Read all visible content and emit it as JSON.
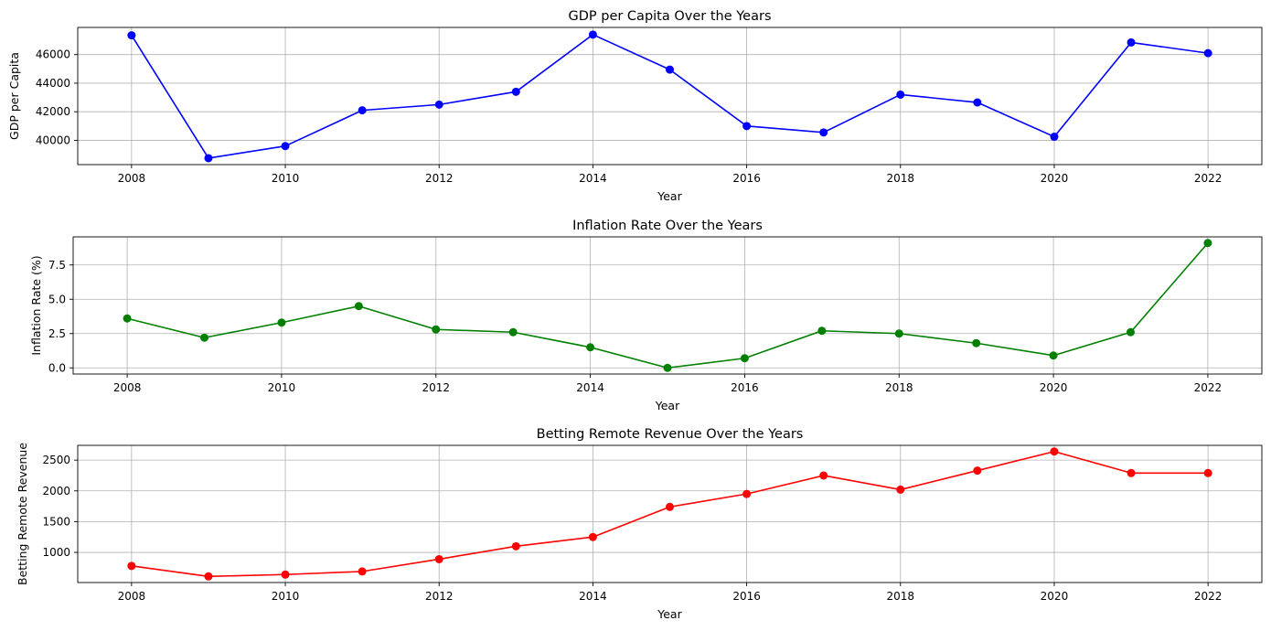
{
  "chart_data": [
    {
      "type": "line",
      "title": "GDP per Capita Over the Years",
      "xlabel": "Year",
      "ylabel": "GDP per Capita",
      "x": [
        2008,
        2009,
        2010,
        2011,
        2012,
        2013,
        2014,
        2015,
        2016,
        2017,
        2018,
        2019,
        2020,
        2021,
        2022
      ],
      "series": [
        {
          "name": "",
          "color": "#0000ff",
          "values": [
            47350,
            38750,
            39600,
            42100,
            42500,
            43400,
            47400,
            44950,
            41000,
            40550,
            43200,
            42650,
            40250,
            46850,
            46100
          ]
        }
      ],
      "xlim": [
        2007.3,
        2022.7
      ],
      "ylim": [
        38300,
        47900
      ],
      "xticks": [
        2008,
        2010,
        2012,
        2014,
        2016,
        2018,
        2020,
        2022
      ],
      "yticks": [
        40000,
        42000,
        44000,
        46000
      ],
      "grid": true
    },
    {
      "type": "line",
      "title": "Inflation Rate Over the Years",
      "xlabel": "Year",
      "ylabel": "Inflation Rate (%)",
      "x": [
        2008,
        2009,
        2010,
        2011,
        2012,
        2013,
        2014,
        2015,
        2016,
        2017,
        2018,
        2019,
        2020,
        2021,
        2022
      ],
      "series": [
        {
          "name": "",
          "color": "#008000",
          "values": [
            3.6,
            2.2,
            3.3,
            4.5,
            2.8,
            2.6,
            1.5,
            0.0,
            0.7,
            2.7,
            2.5,
            1.8,
            0.9,
            2.6,
            9.1
          ]
        }
      ],
      "xlim": [
        2007.3,
        2022.7
      ],
      "ylim": [
        -0.45,
        9.55
      ],
      "xticks": [
        2008,
        2010,
        2012,
        2014,
        2016,
        2018,
        2020,
        2022
      ],
      "yticks": [
        0.0,
        2.5,
        5.0,
        7.5
      ],
      "ytick_labels": [
        "0.0",
        "2.5",
        "5.0",
        "7.5"
      ],
      "grid": true
    },
    {
      "type": "line",
      "title": "Betting Remote Revenue Over the Years",
      "xlabel": "Year",
      "ylabel": "Betting Remote Revenue",
      "x": [
        2008,
        2009,
        2010,
        2011,
        2012,
        2013,
        2014,
        2015,
        2016,
        2017,
        2018,
        2019,
        2020,
        2021,
        2022
      ],
      "series": [
        {
          "name": "",
          "color": "#ff0000",
          "values": [
            780,
            610,
            640,
            690,
            890,
            1100,
            1250,
            1740,
            1950,
            2250,
            2020,
            2330,
            2640,
            2290,
            2290
          ]
        }
      ],
      "xlim": [
        2007.3,
        2022.7
      ],
      "ylim": [
        510,
        2740
      ],
      "xticks": [
        2008,
        2010,
        2012,
        2014,
        2016,
        2018,
        2020,
        2022
      ],
      "yticks": [
        1000,
        1500,
        2000,
        2500
      ],
      "grid": true
    }
  ]
}
